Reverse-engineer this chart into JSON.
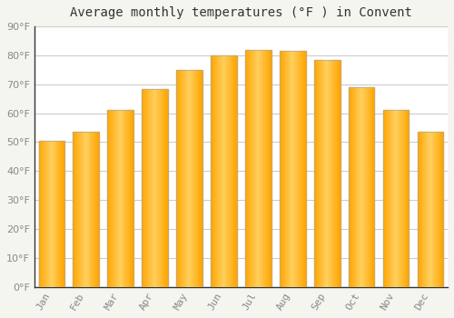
{
  "title": "Average monthly temperatures (°F ) in Convent",
  "months": [
    "Jan",
    "Feb",
    "Mar",
    "Apr",
    "May",
    "Jun",
    "Jul",
    "Aug",
    "Sep",
    "Oct",
    "Nov",
    "Dec"
  ],
  "values": [
    50.5,
    53.5,
    61,
    68.5,
    75,
    80,
    82,
    81.5,
    78.5,
    69,
    61,
    53.5
  ],
  "bar_color_center": "#FFD060",
  "bar_color_edge": "#FFA500",
  "background_color": "#F5F5F0",
  "plot_bg_color": "#FFFFFF",
  "grid_color": "#CCCCCC",
  "text_color": "#888888",
  "axis_color": "#333333",
  "ylim": [
    0,
    90
  ],
  "ytick_step": 10,
  "title_fontsize": 10,
  "tick_fontsize": 8,
  "bar_width": 0.75
}
